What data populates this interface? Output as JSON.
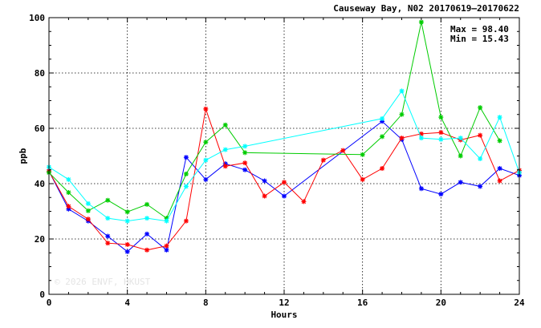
{
  "chart_data": {
    "type": "line",
    "title": "Causeway Bay, N02 20170619–20170622",
    "xlabel": "Hours",
    "ylabel": "ppb",
    "xlim": [
      0,
      24
    ],
    "ylim": [
      0,
      100
    ],
    "x_ticks": [
      0,
      4,
      8,
      12,
      16,
      20,
      24
    ],
    "y_ticks": [
      0,
      20,
      40,
      60,
      80,
      100
    ],
    "grid": true,
    "annotations": [
      "Max = 98.40",
      "Min = 15.43"
    ],
    "watermark": "© 2026  ENVF, HKUST",
    "series": [
      {
        "color": "#0000ff",
        "x": [
          0,
          1,
          2,
          3,
          4,
          5,
          6,
          7,
          8,
          9,
          10,
          11,
          12,
          17,
          18,
          19,
          20,
          21,
          22,
          23,
          24
        ],
        "y": [
          44.5,
          30.8,
          26.5,
          21.0,
          15.43,
          21.8,
          16.0,
          49.5,
          41.5,
          47.2,
          45.0,
          41.0,
          35.5,
          62.5,
          56.0,
          38.2,
          36.2,
          40.5,
          39.0,
          45.5,
          43.0
        ]
      },
      {
        "color": "#ff0000",
        "x": [
          0,
          1,
          2,
          3,
          4,
          5,
          6,
          7,
          8,
          9,
          10,
          11,
          12,
          13,
          14,
          15,
          16,
          17,
          18,
          19,
          20,
          21,
          22,
          23,
          24
        ],
        "y": [
          44.5,
          31.8,
          27.2,
          18.5,
          18.0,
          16.0,
          17.5,
          26.5,
          67.0,
          46.3,
          47.5,
          35.5,
          40.5,
          33.5,
          48.5,
          52.0,
          41.5,
          45.5,
          56.5,
          58.0,
          58.5,
          55.8,
          57.5,
          41.0,
          44.8
        ]
      },
      {
        "color": "#00cc00",
        "x": [
          0,
          1,
          2,
          3,
          4,
          5,
          6,
          7,
          8,
          9,
          10,
          16,
          17,
          18,
          19,
          20,
          21,
          22,
          23
        ],
        "y": [
          44.0,
          36.8,
          30.2,
          34.0,
          29.8,
          32.5,
          27.5,
          43.5,
          55.0,
          61.2,
          51.2,
          50.5,
          57.0,
          65.0,
          98.4,
          64.0,
          50.0,
          67.5,
          55.5
        ]
      },
      {
        "color": "#00ffff",
        "x": [
          0,
          1,
          2,
          3,
          4,
          5,
          6,
          7,
          8,
          9,
          10,
          17,
          18,
          19,
          20,
          21,
          22,
          23,
          24
        ],
        "y": [
          46.0,
          41.5,
          32.8,
          27.5,
          26.5,
          27.5,
          26.5,
          39.0,
          48.5,
          52.3,
          53.5,
          63.5,
          73.5,
          56.5,
          56.0,
          56.5,
          49.0,
          64.0,
          44.0
        ]
      }
    ]
  }
}
